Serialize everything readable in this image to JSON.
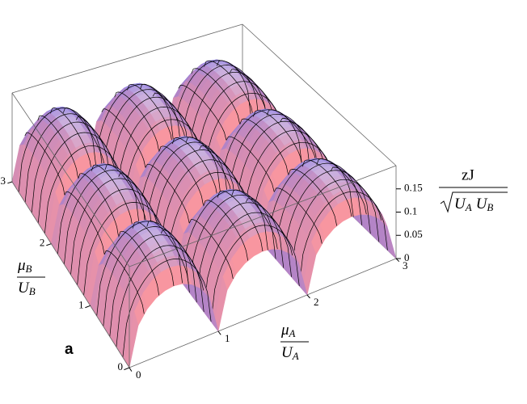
{
  "chart_data": {
    "type": "surface3d",
    "panel_label": "a",
    "x_label": {
      "numerator": [
        "μ",
        "A"
      ],
      "denominator": [
        "U",
        "A"
      ]
    },
    "y_label": {
      "numerator": [
        "μ",
        "B"
      ],
      "denominator": [
        "U",
        "B"
      ]
    },
    "z_label": {
      "numerator": "zJ",
      "denominator": [
        "U",
        "A",
        "U",
        "B"
      ]
    },
    "xlim": [
      0,
      3
    ],
    "ylim": [
      0,
      3
    ],
    "zlim": [
      0,
      0.2
    ],
    "xticks": [
      0,
      1,
      2,
      3
    ],
    "yticks": [
      0,
      1,
      2,
      3
    ],
    "zticks": [
      0,
      0.05,
      0.1,
      0.15
    ],
    "peaks": [
      [
        0.17,
        0.17,
        0.17
      ],
      [
        0.17,
        0.17,
        0.17
      ],
      [
        0.17,
        0.17,
        0.17
      ]
    ]
  }
}
